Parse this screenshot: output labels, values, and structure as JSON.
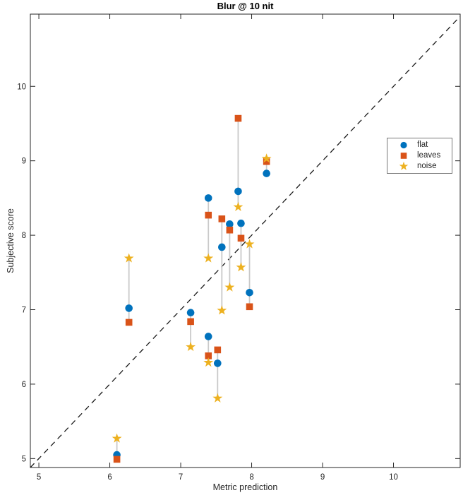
{
  "title": "Blur @ 10 nit",
  "axes": {
    "xlabel": "Metric prediction",
    "ylabel": "Subjective score",
    "xticks": [
      5,
      6,
      7,
      8,
      9,
      10
    ],
    "yticks": [
      5,
      6,
      7,
      8,
      9,
      10
    ],
    "xlim": [
      4.88,
      10.94
    ],
    "ylim": [
      4.88,
      10.97
    ],
    "axis_color": "#262626",
    "tick_direction": "in",
    "box": true
  },
  "legend": {
    "items": [
      {
        "label": "flat",
        "marker": "circle",
        "color": "#0072BD"
      },
      {
        "label": "leaves",
        "marker": "square",
        "color": "#D95319"
      },
      {
        "label": "noise",
        "marker": "star",
        "color": "#EDB120"
      }
    ]
  },
  "chart_data": {
    "type": "scatter",
    "title": "Blur @ 10 nit",
    "xlabel": "Metric prediction",
    "ylabel": "Subjective score",
    "xlim": [
      4.88,
      10.94
    ],
    "ylim": [
      4.88,
      10.97
    ],
    "grid": false,
    "legend_position": "right-middle",
    "identity_line": {
      "style": "dashed",
      "color": "#1a1a1a",
      "from": 4.88,
      "to": 10.94
    },
    "connector_color": "#c9c9c9",
    "series": [
      {
        "name": "flat",
        "marker": "circle",
        "color": "#0072BD"
      },
      {
        "name": "leaves",
        "marker": "square",
        "color": "#D95319"
      },
      {
        "name": "noise",
        "marker": "star",
        "color": "#EDB120"
      }
    ],
    "groups": [
      {
        "x": 6.1,
        "flat": 5.05,
        "leaves": 4.99,
        "noise": 5.27
      },
      {
        "x": 6.27,
        "flat": 7.02,
        "leaves": 6.83,
        "noise": 7.69
      },
      {
        "x": 7.14,
        "flat": 6.96,
        "leaves": 6.84,
        "noise": 6.5
      },
      {
        "x": 7.39,
        "flat": 8.5,
        "leaves": 8.27,
        "noise": 7.69
      },
      {
        "x": 7.39,
        "flat": 6.64,
        "leaves": 6.38,
        "noise": 6.29
      },
      {
        "x": 7.52,
        "flat": 6.28,
        "leaves": 6.46,
        "noise": 5.81
      },
      {
        "x": 7.58,
        "flat": 7.84,
        "leaves": 8.22,
        "noise": 6.99
      },
      {
        "x": 7.69,
        "flat": 8.15,
        "leaves": 8.07,
        "noise": 7.3
      },
      {
        "x": 7.81,
        "flat": 8.59,
        "leaves": 9.57,
        "noise": 8.38
      },
      {
        "x": 7.85,
        "flat": 8.16,
        "leaves": 7.96,
        "noise": 7.57
      },
      {
        "x": 7.97,
        "flat": 7.23,
        "leaves": 7.04,
        "noise": 7.88
      },
      {
        "x": 8.21,
        "flat": 8.83,
        "leaves": 8.99,
        "noise": 9.03
      }
    ]
  }
}
